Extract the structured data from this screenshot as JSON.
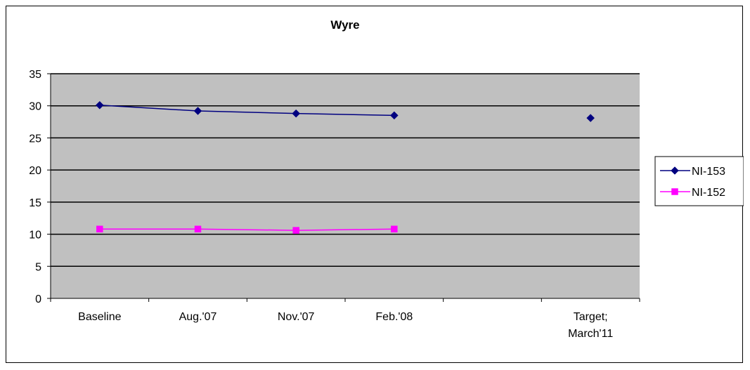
{
  "chart_data": {
    "type": "line",
    "title": "Wyre",
    "xlabel": "",
    "ylabel": "",
    "categories": [
      "Baseline",
      "Aug.'07",
      "Nov.'07",
      "Feb.'08",
      "",
      "Target;\nMarch'11"
    ],
    "category_lines": [
      [
        "Baseline"
      ],
      [
        "Aug.'07"
      ],
      [
        "Nov.'07"
      ],
      [
        "Feb.'08"
      ],
      [],
      [
        "Target;",
        "March'11"
      ]
    ],
    "ylim": [
      0,
      35
    ],
    "yticks": [
      0,
      5,
      10,
      15,
      20,
      25,
      30,
      35
    ],
    "grid": true,
    "plot_background": "#c0c0c0",
    "legend_position": "right",
    "series": [
      {
        "name": "NI-153",
        "color": "#000080",
        "marker": "diamond",
        "values": [
          30.1,
          29.2,
          28.8,
          28.5,
          null,
          28.1
        ]
      },
      {
        "name": "NI-152",
        "color": "#ff00ff",
        "marker": "square",
        "values": [
          10.8,
          10.8,
          10.6,
          10.8,
          null,
          null
        ]
      }
    ]
  }
}
